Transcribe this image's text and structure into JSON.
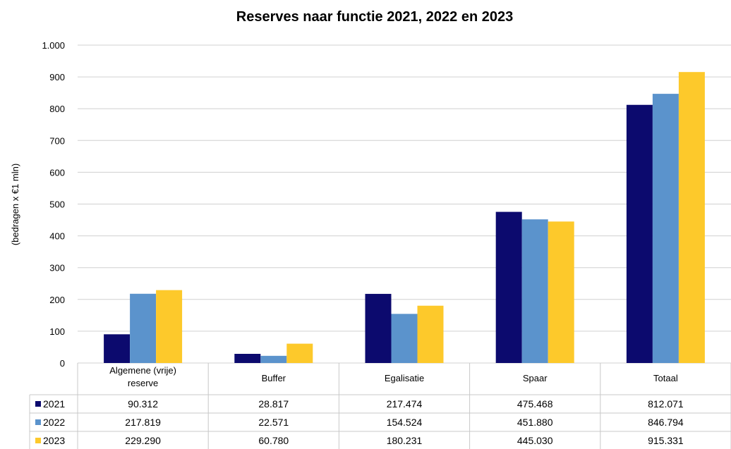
{
  "chart_data": {
    "type": "bar",
    "title": "Reserves naar functie 2021, 2022 en 2023",
    "ylabel": "(bedragen x €1 mln)",
    "xlabel": "",
    "categories": [
      "Algemene (vrije) reserve",
      "Buffer",
      "Egalisatie",
      "Spaar",
      "Totaal"
    ],
    "category_lines": [
      [
        "Algemene (vrije)",
        "reserve"
      ],
      [
        "Buffer"
      ],
      [
        "Egalisatie"
      ],
      [
        "Spaar"
      ],
      [
        "Totaal"
      ]
    ],
    "y_ticks": [
      0,
      100,
      200,
      300,
      400,
      500,
      600,
      700,
      800,
      900,
      1000
    ],
    "y_tick_labels": [
      "0",
      "100",
      "200",
      "300",
      "400",
      "500",
      "600",
      "700",
      "800",
      "900",
      "1.000"
    ],
    "ylim": [
      0,
      1000
    ],
    "grid": true,
    "legend": "in data table",
    "series": [
      {
        "name": "2021",
        "color": "#0c0a6e",
        "values": [
          90.312,
          28.817,
          217.474,
          475.468,
          812.071
        ],
        "labels": [
          "90.312",
          "28.817",
          "217.474",
          "475.468",
          "812.071"
        ]
      },
      {
        "name": "2022",
        "color": "#5b93cc",
        "values": [
          217.819,
          22.571,
          154.524,
          451.88,
          846.794
        ],
        "labels": [
          "217.819",
          "22.571",
          "154.524",
          "451.880",
          "846.794"
        ]
      },
      {
        "name": "2023",
        "color": "#fdc92b",
        "values": [
          229.29,
          60.78,
          180.231,
          445.03,
          915.331
        ],
        "labels": [
          "229.290",
          "60.780",
          "180.231",
          "445.030",
          "915.331"
        ]
      }
    ]
  }
}
